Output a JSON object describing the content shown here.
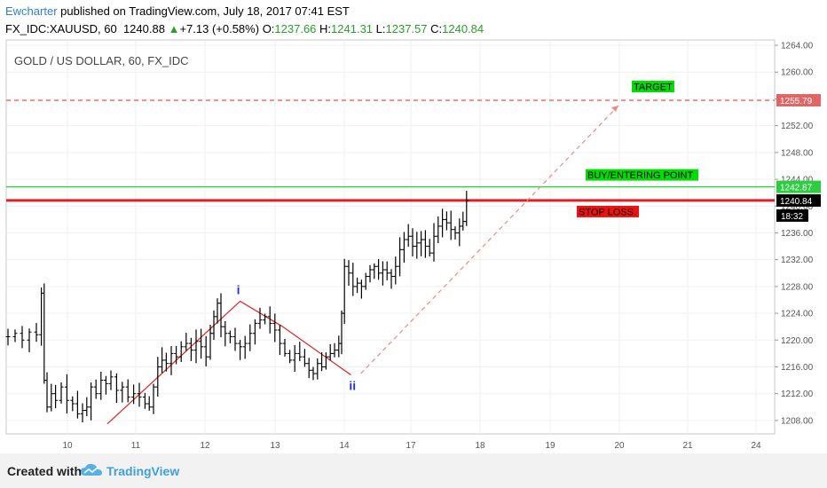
{
  "header": {
    "author": "Ewcharter",
    "published": "published on TradingView.com, July 18, 2017 07:41 EST",
    "symbol": "FX_IDC:XAUUSD, 60",
    "last": "1240.88",
    "arrow": "▲",
    "change": "+7.13 (+0.58%)",
    "o_label": "O:",
    "o": "1237.66",
    "h_label": "H:",
    "h": "1241.31",
    "l_label": "L:",
    "l": "1237.57",
    "c_label": "C:",
    "c": "1240.84"
  },
  "footer": {
    "created_with": "Created with",
    "brand": "TradingView"
  },
  "chart_data": {
    "type": "candlestick",
    "title": "GOLD / US DOLLAR, 60, FX_IDC",
    "ylim": [
      1206,
      1264.8
    ],
    "y_ticks": [
      1208,
      1212,
      1216,
      1220,
      1224,
      1228,
      1232,
      1236,
      1240,
      1244,
      1248,
      1252,
      1256,
      1260,
      1264
    ],
    "x_ticks": [
      "10",
      "11",
      "12",
      "13",
      "14",
      "17",
      "18",
      "19",
      "20",
      "21",
      "24"
    ],
    "price_series": [
      {
        "t": 0.5,
        "v": 1220.5
      },
      {
        "t": 1.5,
        "v": 1221
      },
      {
        "t": 2.5,
        "v": 1220
      },
      {
        "t": 3.5,
        "v": 1221.2
      },
      {
        "t": 4.5,
        "v": 1220.8
      },
      {
        "t": 5.2,
        "v": 1227
      },
      {
        "t": 5.6,
        "v": 1214
      },
      {
        "t": 6.0,
        "v": 1210
      },
      {
        "t": 6.6,
        "v": 1212
      },
      {
        "t": 7.2,
        "v": 1211
      },
      {
        "t": 8.0,
        "v": 1213
      },
      {
        "t": 8.8,
        "v": 1211
      },
      {
        "t": 9.6,
        "v": 1210.5
      },
      {
        "t": 10.3,
        "v": 1209
      },
      {
        "t": 11,
        "v": 1209.5
      },
      {
        "t": 11.6,
        "v": 1210
      },
      {
        "t": 12.2,
        "v": 1213
      },
      {
        "t": 12.9,
        "v": 1212
      },
      {
        "t": 13.6,
        "v": 1214
      },
      {
        "t": 14.3,
        "v": 1213.5
      },
      {
        "t": 15,
        "v": 1214.5
      },
      {
        "t": 15.8,
        "v": 1212.5
      },
      {
        "t": 16.6,
        "v": 1213
      },
      {
        "t": 17.4,
        "v": 1211.5
      },
      {
        "t": 18.2,
        "v": 1212
      },
      {
        "t": 19,
        "v": 1211.5
      },
      {
        "t": 19.8,
        "v": 1210.5
      },
      {
        "t": 20.4,
        "v": 1210
      },
      {
        "t": 21,
        "v": 1213
      },
      {
        "t": 21.6,
        "v": 1216
      },
      {
        "t": 22.2,
        "v": 1217
      },
      {
        "t": 22.8,
        "v": 1216.5
      },
      {
        "t": 23.5,
        "v": 1218
      },
      {
        "t": 24.2,
        "v": 1217.5
      },
      {
        "t": 24.9,
        "v": 1219
      },
      {
        "t": 25.6,
        "v": 1219.5
      },
      {
        "t": 26.3,
        "v": 1218.5
      },
      {
        "t": 27,
        "v": 1219.8
      },
      {
        "t": 27.7,
        "v": 1219
      },
      {
        "t": 28.4,
        "v": 1217.5
      },
      {
        "t": 29,
        "v": 1221
      },
      {
        "t": 29.5,
        "v": 1223.5
      },
      {
        "t": 30,
        "v": 1225.5
      },
      {
        "t": 30.5,
        "v": 1222
      },
      {
        "t": 31.1,
        "v": 1221
      },
      {
        "t": 31.8,
        "v": 1220.5
      },
      {
        "t": 32.5,
        "v": 1219.5
      },
      {
        "t": 33.2,
        "v": 1219
      },
      {
        "t": 33.9,
        "v": 1219.5
      },
      {
        "t": 34.6,
        "v": 1221
      },
      {
        "t": 35.3,
        "v": 1222.5
      },
      {
        "t": 36,
        "v": 1223
      },
      {
        "t": 36.7,
        "v": 1223.5
      },
      {
        "t": 37.4,
        "v": 1222.5
      },
      {
        "t": 38.1,
        "v": 1221.5
      },
      {
        "t": 38.8,
        "v": 1219.5
      },
      {
        "t": 39.5,
        "v": 1218
      },
      {
        "t": 40.2,
        "v": 1217
      },
      {
        "t": 40.9,
        "v": 1218
      },
      {
        "t": 41.6,
        "v": 1217.5
      },
      {
        "t": 42.3,
        "v": 1216.5
      },
      {
        "t": 42.9,
        "v": 1215.5
      },
      {
        "t": 43.5,
        "v": 1215
      },
      {
        "t": 44.1,
        "v": 1216.5
      },
      {
        "t": 44.7,
        "v": 1216
      },
      {
        "t": 45.3,
        "v": 1217.5
      },
      {
        "t": 45.9,
        "v": 1218
      },
      {
        "t": 46.5,
        "v": 1218.5
      },
      {
        "t": 47.1,
        "v": 1219.5
      },
      {
        "t": 47.5,
        "v": 1224
      },
      {
        "t": 47.9,
        "v": 1231
      },
      {
        "t": 48.5,
        "v": 1230
      },
      {
        "t": 49.1,
        "v": 1228
      },
      {
        "t": 49.7,
        "v": 1228.5
      },
      {
        "t": 50.3,
        "v": 1228
      },
      {
        "t": 50.9,
        "v": 1229.5
      },
      {
        "t": 51.5,
        "v": 1230.5
      },
      {
        "t": 52.1,
        "v": 1231
      },
      {
        "t": 52.7,
        "v": 1230
      },
      {
        "t": 53.3,
        "v": 1230.5
      },
      {
        "t": 53.9,
        "v": 1230
      },
      {
        "t": 54.5,
        "v": 1229.5
      },
      {
        "t": 55.1,
        "v": 1231
      },
      {
        "t": 55.7,
        "v": 1233.5
      },
      {
        "t": 56.3,
        "v": 1235
      },
      {
        "t": 56.9,
        "v": 1235.5
      },
      {
        "t": 57.5,
        "v": 1234
      },
      {
        "t": 58.1,
        "v": 1234.5
      },
      {
        "t": 58.7,
        "v": 1235
      },
      {
        "t": 59.3,
        "v": 1234
      },
      {
        "t": 59.9,
        "v": 1233
      },
      {
        "t": 60.5,
        "v": 1235.5
      },
      {
        "t": 61.1,
        "v": 1237
      },
      {
        "t": 61.7,
        "v": 1238
      },
      {
        "t": 62.3,
        "v": 1237.5
      },
      {
        "t": 62.9,
        "v": 1236.5
      },
      {
        "t": 63.5,
        "v": 1236
      },
      {
        "t": 64.1,
        "v": 1237
      },
      {
        "t": 64.6,
        "v": 1237.7
      },
      {
        "t": 65.1,
        "v": 1240.8
      }
    ],
    "horizontal_lines": [
      {
        "name": "target-line",
        "value": 1255.79,
        "label": "1255.79",
        "style": "dashed",
        "color": "#e06666"
      },
      {
        "name": "buy-line",
        "value": 1242.87,
        "label": "1242.87",
        "style": "solid",
        "color": "#2ecc40"
      },
      {
        "name": "stop-line",
        "value": 1240.84,
        "label": "1240.84",
        "style": "solid",
        "color": "#e02020"
      }
    ],
    "current_price": "1240.84",
    "countdown": "18:32",
    "annotations": [
      {
        "name": "target-annotation",
        "text": "TARGET",
        "color": "#00dd00"
      },
      {
        "name": "buy-annotation",
        "text": "BUY/ENTERING POINT",
        "color": "#00dd00"
      },
      {
        "name": "stop-annotation",
        "text": "STOP LOSS.",
        "color": "#ee1111"
      }
    ],
    "wave_labels": [
      "i",
      "ii"
    ]
  }
}
